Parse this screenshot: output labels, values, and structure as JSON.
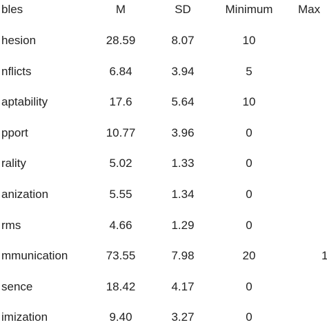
{
  "table": {
    "header": [
      "bles",
      "M",
      "SD",
      "Minimum",
      "Max"
    ],
    "rows": [
      {
        "label": "hesion",
        "m": "28.59",
        "sd": "8.07",
        "min": "10"
      },
      {
        "label": "nflicts",
        "m": "6.84",
        "sd": "3.94",
        "min": "5"
      },
      {
        "label": "aptability",
        "m": "17.6",
        "sd": "5.64",
        "min": "10"
      },
      {
        "label": "pport",
        "m": "10.77",
        "sd": "3.96",
        "min": "0"
      },
      {
        "label": "rality",
        "m": "5.02",
        "sd": "1.33",
        "min": "0"
      },
      {
        "label": "anization",
        "m": "5.55",
        "sd": "1.34",
        "min": "0"
      },
      {
        "label": "rms",
        "m": "4.66",
        "sd": "1.29",
        "min": "0"
      },
      {
        "label": "mmunication",
        "m": "73.55",
        "sd": "7.98",
        "min": "20",
        "max": "1"
      },
      {
        "label": "sence",
        "m": "18.42",
        "sd": "4.17",
        "min": "0"
      },
      {
        "label": "imization",
        "m": "9.40",
        "sd": "3.27",
        "min": "0"
      }
    ]
  }
}
